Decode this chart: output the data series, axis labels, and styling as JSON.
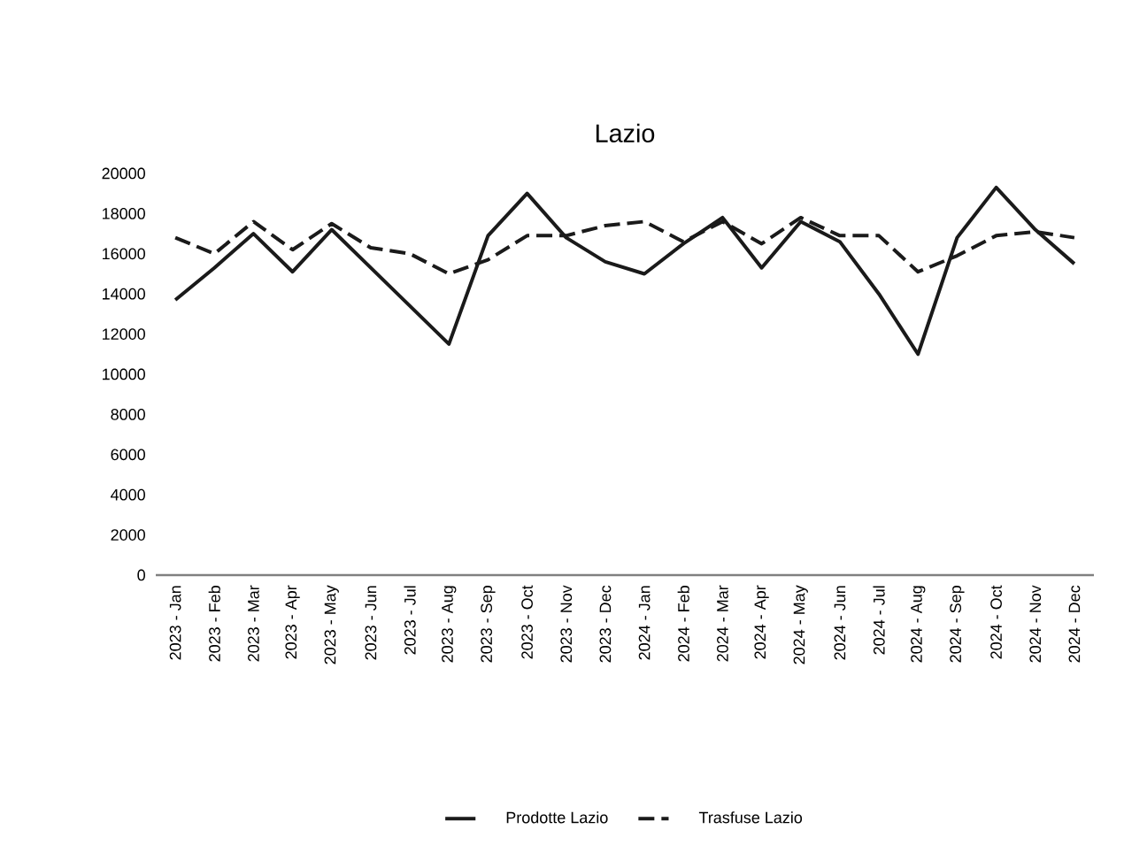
{
  "chart_data": {
    "type": "line",
    "title": "Lazio",
    "categories": [
      "2023 - Jan",
      "2023 - Feb",
      "2023 - Mar",
      "2023 - Apr",
      "2023 - May",
      "2023 - Jun",
      "2023 - Jul",
      "2023 - Aug",
      "2023 - Sep",
      "2023 - Oct",
      "2023 - Nov",
      "2023 - Dec",
      "2024 - Jan",
      "2024 - Feb",
      "2024 - Mar",
      "2024 - Apr",
      "2024 - May",
      "2024 - Jun",
      "2024 - Jul",
      "2024 - Aug",
      "2024 - Sep",
      "2024 - Oct",
      "2024 - Nov",
      "2024 - Dec"
    ],
    "series": [
      {
        "name": "Prodotte Lazio",
        "color": "#1a1a1a",
        "line_style": "solid",
        "values": [
          13700,
          15300,
          17000,
          15100,
          17200,
          15300,
          13400,
          11500,
          16900,
          19000,
          16800,
          15600,
          15000,
          16500,
          17800,
          15300,
          17600,
          16600,
          14000,
          11000,
          16800,
          19300,
          17200,
          15500
        ]
      },
      {
        "name": "Trasfuse  Lazio",
        "color": "#1a1a1a",
        "line_style": "dashed",
        "values": [
          16800,
          16000,
          17600,
          16200,
          17500,
          16300,
          16000,
          15000,
          15700,
          16900,
          16900,
          17400,
          17600,
          16600,
          17600,
          16500,
          17800,
          16900,
          16900,
          15100,
          15900,
          16900,
          17100,
          16800
        ]
      }
    ],
    "ylim": [
      0,
      20000
    ],
    "yticks": [
      0,
      2000,
      4000,
      6000,
      8000,
      10000,
      12000,
      14000,
      16000,
      18000,
      20000
    ],
    "grid": false,
    "legend": "bottom",
    "marker": "none"
  }
}
